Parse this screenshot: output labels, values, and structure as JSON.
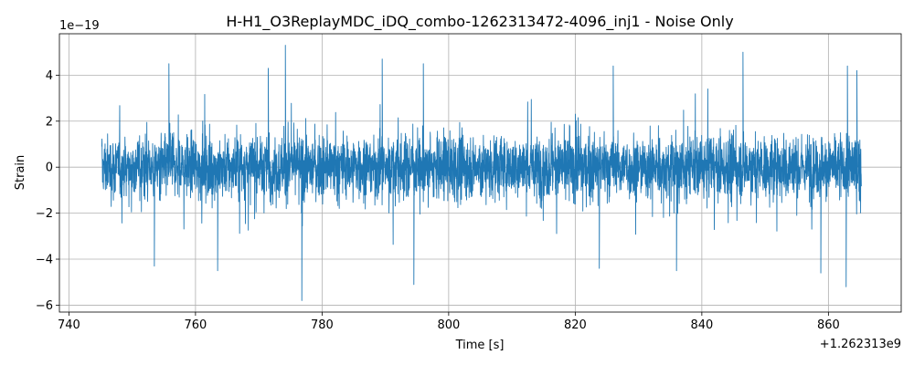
{
  "chart_data": {
    "type": "line",
    "title": "H-H1_O3ReplayMDC_iDQ_combo-1262313472-4096_inj1 - Noise Only",
    "xlabel": "Time [s]",
    "ylabel": "Strain",
    "x_offset_label": "+1.262313e9",
    "y_multiplier_label": "1e−19",
    "xlim": [
      738.5,
      871.5
    ],
    "ylim": [
      -6.3,
      5.8
    ],
    "x_ticks": [
      740,
      760,
      780,
      800,
      820,
      840,
      860
    ],
    "x_tick_labels": [
      "740",
      "760",
      "780",
      "800",
      "820",
      "840",
      "860"
    ],
    "y_ticks": [
      -6,
      -4,
      -2,
      0,
      2,
      4
    ],
    "y_tick_labels": [
      "−6",
      "−4",
      "−2",
      "0",
      "2",
      "4"
    ],
    "grid": true,
    "series": [
      {
        "color": "#1f77b4",
        "x_range": [
          745.2,
          865.2
        ],
        "typical_envelope": 1.6,
        "peaks": [
          {
            "x": 755.8,
            "y": 4.5
          },
          {
            "x": 771.5,
            "y": 4.3
          },
          {
            "x": 774.2,
            "y": 5.3
          },
          {
            "x": 789.5,
            "y": 4.7
          },
          {
            "x": 796.0,
            "y": 4.5
          },
          {
            "x": 826.0,
            "y": 4.4
          },
          {
            "x": 846.5,
            "y": 5.0
          },
          {
            "x": 863.0,
            "y": 4.4
          },
          {
            "x": 864.5,
            "y": 4.2
          },
          {
            "x": 776.8,
            "y": -5.8
          },
          {
            "x": 794.5,
            "y": -5.1
          },
          {
            "x": 823.8,
            "y": -4.4
          },
          {
            "x": 836.0,
            "y": -4.5
          },
          {
            "x": 858.8,
            "y": -4.6
          },
          {
            "x": 862.8,
            "y": -5.2
          },
          {
            "x": 753.5,
            "y": -4.3
          },
          {
            "x": 763.5,
            "y": -4.5
          }
        ]
      }
    ]
  }
}
